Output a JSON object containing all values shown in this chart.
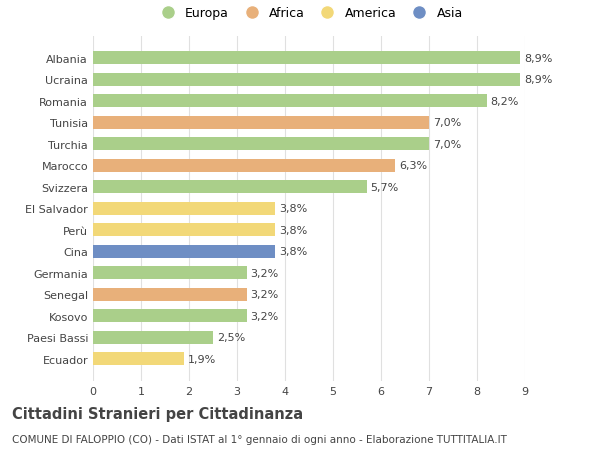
{
  "categories": [
    "Ecuador",
    "Paesi Bassi",
    "Kosovo",
    "Senegal",
    "Germania",
    "Cina",
    "Perù",
    "El Salvador",
    "Svizzera",
    "Marocco",
    "Turchia",
    "Tunisia",
    "Romania",
    "Ucraina",
    "Albania"
  ],
  "values": [
    1.9,
    2.5,
    3.2,
    3.2,
    3.2,
    3.8,
    3.8,
    3.8,
    5.7,
    6.3,
    7.0,
    7.0,
    8.2,
    8.9,
    8.9
  ],
  "labels": [
    "1,9%",
    "2,5%",
    "3,2%",
    "3,2%",
    "3,2%",
    "3,8%",
    "3,8%",
    "3,8%",
    "5,7%",
    "6,3%",
    "7,0%",
    "7,0%",
    "8,2%",
    "8,9%",
    "8,9%"
  ],
  "continents": [
    "America",
    "Europa",
    "Europa",
    "Africa",
    "Europa",
    "Asia",
    "America",
    "America",
    "Europa",
    "Africa",
    "Europa",
    "Africa",
    "Europa",
    "Europa",
    "Europa"
  ],
  "colors": {
    "Europa": "#aacf8a",
    "Africa": "#e8b07a",
    "America": "#f2d878",
    "Asia": "#6e8ec4"
  },
  "legend_order": [
    "Europa",
    "Africa",
    "America",
    "Asia"
  ],
  "title": "Cittadini Stranieri per Cittadinanza",
  "subtitle": "COMUNE DI FALOPPIO (CO) - Dati ISTAT al 1° gennaio di ogni anno - Elaborazione TUTTITALIA.IT",
  "xlim": [
    0,
    9
  ],
  "xticks": [
    0,
    1,
    2,
    3,
    4,
    5,
    6,
    7,
    8,
    9
  ],
  "bar_height": 0.6,
  "background_color": "#ffffff",
  "grid_color": "#e0e0e0",
  "text_color": "#444444",
  "label_fontsize": 8.0,
  "tick_fontsize": 8.0,
  "title_fontsize": 10.5,
  "subtitle_fontsize": 7.5,
  "legend_fontsize": 9.0,
  "legend_marker_size": 10
}
